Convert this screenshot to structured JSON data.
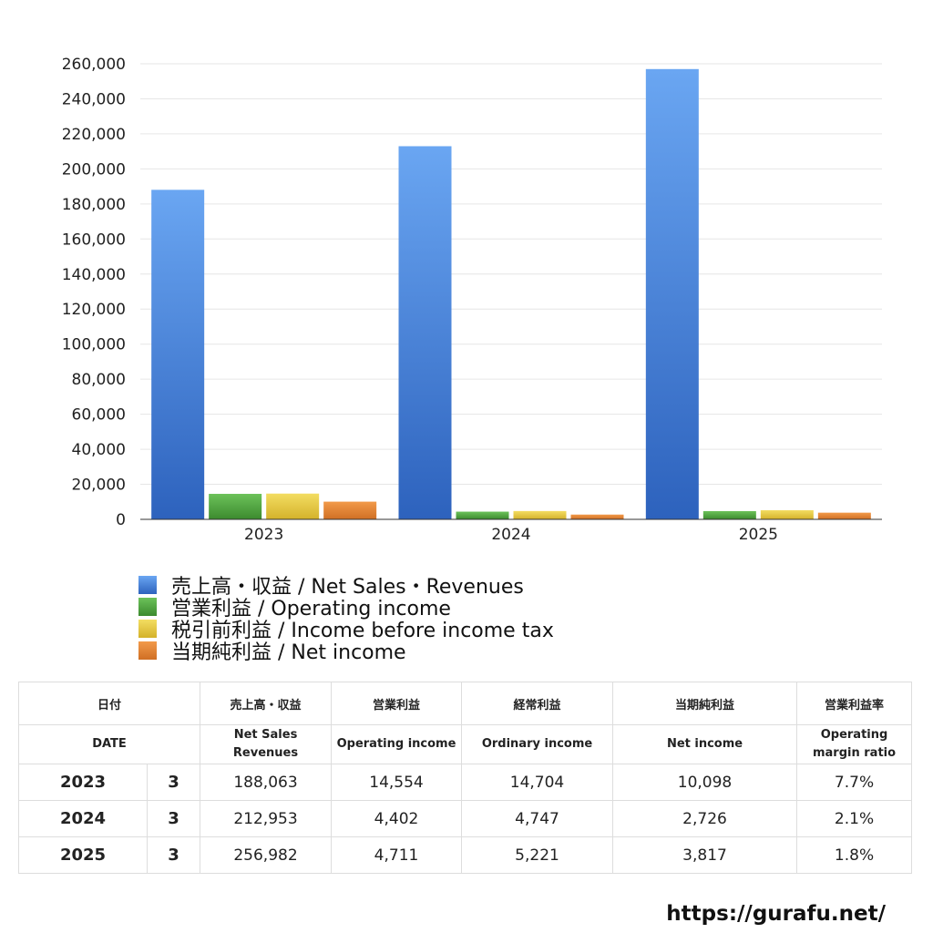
{
  "chart_data": {
    "type": "bar",
    "categories": [
      "2023",
      "2024",
      "2025"
    ],
    "series": [
      {
        "name": "売上高・収益 / Net Sales・Revenues",
        "color": "#4a86e0",
        "values": [
          188063,
          212953,
          256982
        ]
      },
      {
        "name": "営業利益 / Operating income",
        "color": "#4f9f3c",
        "values": [
          14554,
          4402,
          4711
        ]
      },
      {
        "name": "税引前利益 / Income before income tax",
        "color": "#e0c33a",
        "values": [
          14704,
          4747,
          5221
        ]
      },
      {
        "name": "当期純利益 / Net income",
        "color": "#e07f30",
        "values": [
          10098,
          2726,
          3817
        ]
      }
    ],
    "ylim": [
      0,
      260000
    ],
    "yticks": [
      "0",
      "20,000",
      "40,000",
      "60,000",
      "80,000",
      "100,000",
      "120,000",
      "140,000",
      "160,000",
      "180,000",
      "200,000",
      "220,000",
      "240,000",
      "260,000"
    ],
    "grid": true,
    "legend_position": "bottom-left"
  },
  "table": {
    "headers_jp": [
      "日付",
      "売上高・収益",
      "営業利益",
      "経常利益",
      "当期純利益",
      "営業利益率"
    ],
    "headers_en": {
      "date": "DATE",
      "sales_1": "Net Sales",
      "sales_2": "Revenues",
      "operating": "Operating income",
      "ordinary": "Ordinary income",
      "net": "Net income",
      "margin_1": "Operating",
      "margin_2": "margin ratio"
    },
    "rows": [
      {
        "year": "2023",
        "month": "3",
        "sales": "188,063",
        "operating": "14,554",
        "ordinary": "14,704",
        "net": "10,098",
        "margin": "7.7%"
      },
      {
        "year": "2024",
        "month": "3",
        "sales": "212,953",
        "operating": "4,402",
        "ordinary": "4,747",
        "net": "2,726",
        "margin": "2.1%"
      },
      {
        "year": "2025",
        "month": "3",
        "sales": "256,982",
        "operating": "4,711",
        "ordinary": "5,221",
        "net": "3,817",
        "margin": "1.8%"
      }
    ]
  },
  "footer": {
    "url": "https://gurafu.net/"
  }
}
